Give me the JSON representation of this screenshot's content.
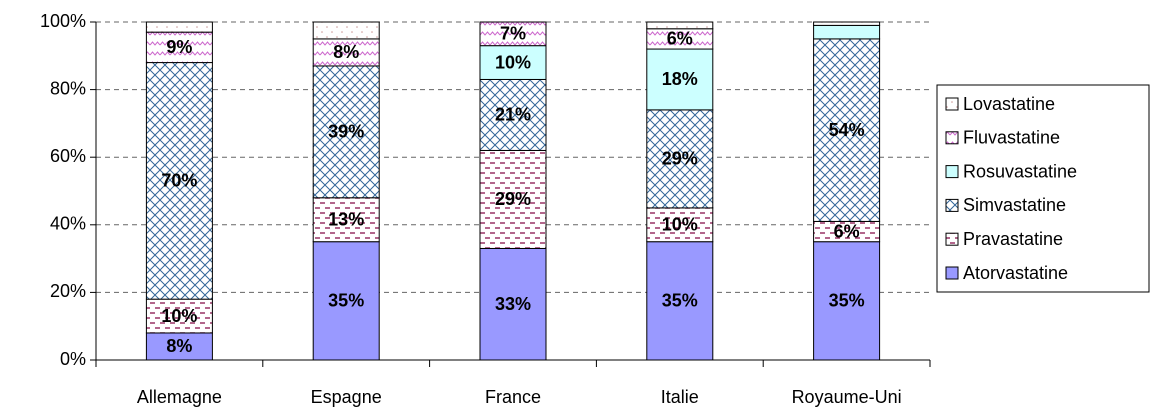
{
  "chart_data": {
    "type": "stacked_bar",
    "categories": [
      "Allemagne",
      "Espagne",
      "France",
      "Italie",
      "Royaume-Uni"
    ],
    "series": [
      {
        "name": "Atorvastatine",
        "color": "#9999ff",
        "pattern": "solid",
        "values": [
          8,
          35,
          33,
          35,
          35
        ],
        "value_labels": [
          "8%",
          "35%",
          "33%",
          "35%",
          "35%"
        ]
      },
      {
        "name": "Pravastatine",
        "color": "#993366",
        "pattern": "dashes",
        "values": [
          10,
          13,
          29,
          10,
          6
        ],
        "value_labels": [
          "10%",
          "13%",
          "29%",
          "10%",
          "6%"
        ]
      },
      {
        "name": "Simvastatine",
        "color": "#336699",
        "pattern": "crosshatch",
        "values": [
          70,
          39,
          21,
          29,
          54
        ],
        "value_labels": [
          "70%",
          "39%",
          "21%",
          "29%",
          "54%"
        ]
      },
      {
        "name": "Rosuvastatine",
        "color": "#ccffff",
        "pattern": "solid",
        "values": [
          0,
          0,
          10,
          18,
          4
        ],
        "value_labels": [
          null,
          null,
          "10%",
          "18%",
          null
        ]
      },
      {
        "name": "Fluvastatine",
        "color": "#cc66cc",
        "pattern": "zigzag",
        "values": [
          9,
          8,
          7,
          6,
          0
        ],
        "value_labels": [
          "9%",
          "8%",
          "7%",
          "6%",
          null
        ]
      },
      {
        "name": "Lovastatine",
        "color": "#cc9999",
        "pattern": "dots",
        "values": [
          3,
          5,
          0,
          2,
          1
        ],
        "value_labels": [
          null,
          null,
          null,
          null,
          null
        ]
      }
    ],
    "ylim": [
      0,
      100
    ],
    "yticks": [
      {
        "value": 0,
        "label": "0%"
      },
      {
        "value": 20,
        "label": "20%"
      },
      {
        "value": 40,
        "label": "40%"
      },
      {
        "value": 60,
        "label": "60%"
      },
      {
        "value": 80,
        "label": "80%"
      },
      {
        "value": 100,
        "label": "100%"
      }
    ],
    "grid": true,
    "legend": "right"
  }
}
